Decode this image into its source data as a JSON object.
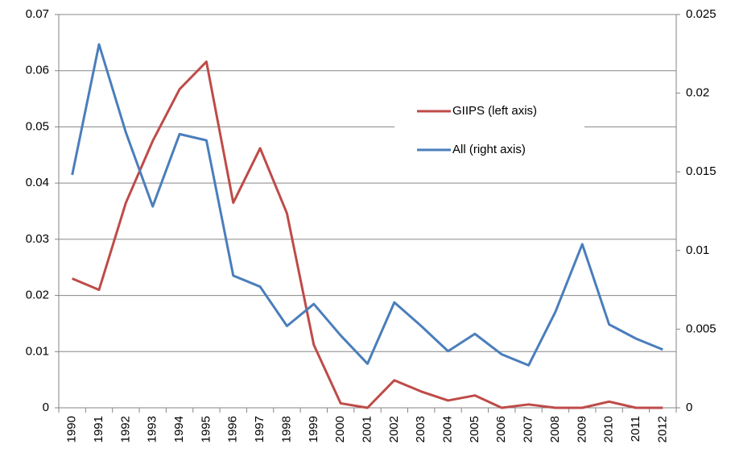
{
  "chart_data": {
    "type": "line",
    "categories": [
      "1990",
      "1991",
      "1992",
      "1993",
      "1994",
      "1995",
      "1996",
      "1997",
      "1998",
      "1999",
      "2000",
      "2001",
      "2002",
      "2003",
      "2004",
      "2005",
      "2006",
      "2007",
      "2008",
      "2009",
      "2010",
      "2011",
      "2012"
    ],
    "series": [
      {
        "name": "GIIPS (left axis)",
        "color": "#be4b48",
        "axis": "y",
        "values": [
          0.023,
          0.021,
          0.0365,
          0.0475,
          0.0567,
          0.0616,
          0.0365,
          0.0462,
          0.0346,
          0.0112,
          0.0008,
          0,
          0.0049,
          0.0029,
          0.0013,
          0.0022,
          0,
          0.0006,
          0,
          0,
          0.0011,
          0,
          0
        ]
      },
      {
        "name": "All (right axis)",
        "color": "#4a7ebb",
        "axis": "y2",
        "values": [
          0.0148,
          0.0231,
          0.0175,
          0.0128,
          0.0174,
          0.017,
          0.0084,
          0.0077,
          0.0052,
          0.0066,
          0.0046,
          0.0028,
          0.0067,
          0.0052,
          0.0036,
          0.0047,
          0.0034,
          0.0027,
          0.0061,
          0.0104,
          0.0053,
          0.0044,
          0.0037
        ]
      }
    ],
    "ylim": [
      0,
      0.07
    ],
    "yticks": [
      0,
      0.01,
      0.02,
      0.03,
      0.04,
      0.05,
      0.06,
      0.07
    ],
    "y2lim": [
      0,
      0.025
    ],
    "y2ticks": [
      0,
      0.005,
      0.01,
      0.015,
      0.02,
      0.025
    ],
    "grid": true,
    "legend": "right"
  }
}
